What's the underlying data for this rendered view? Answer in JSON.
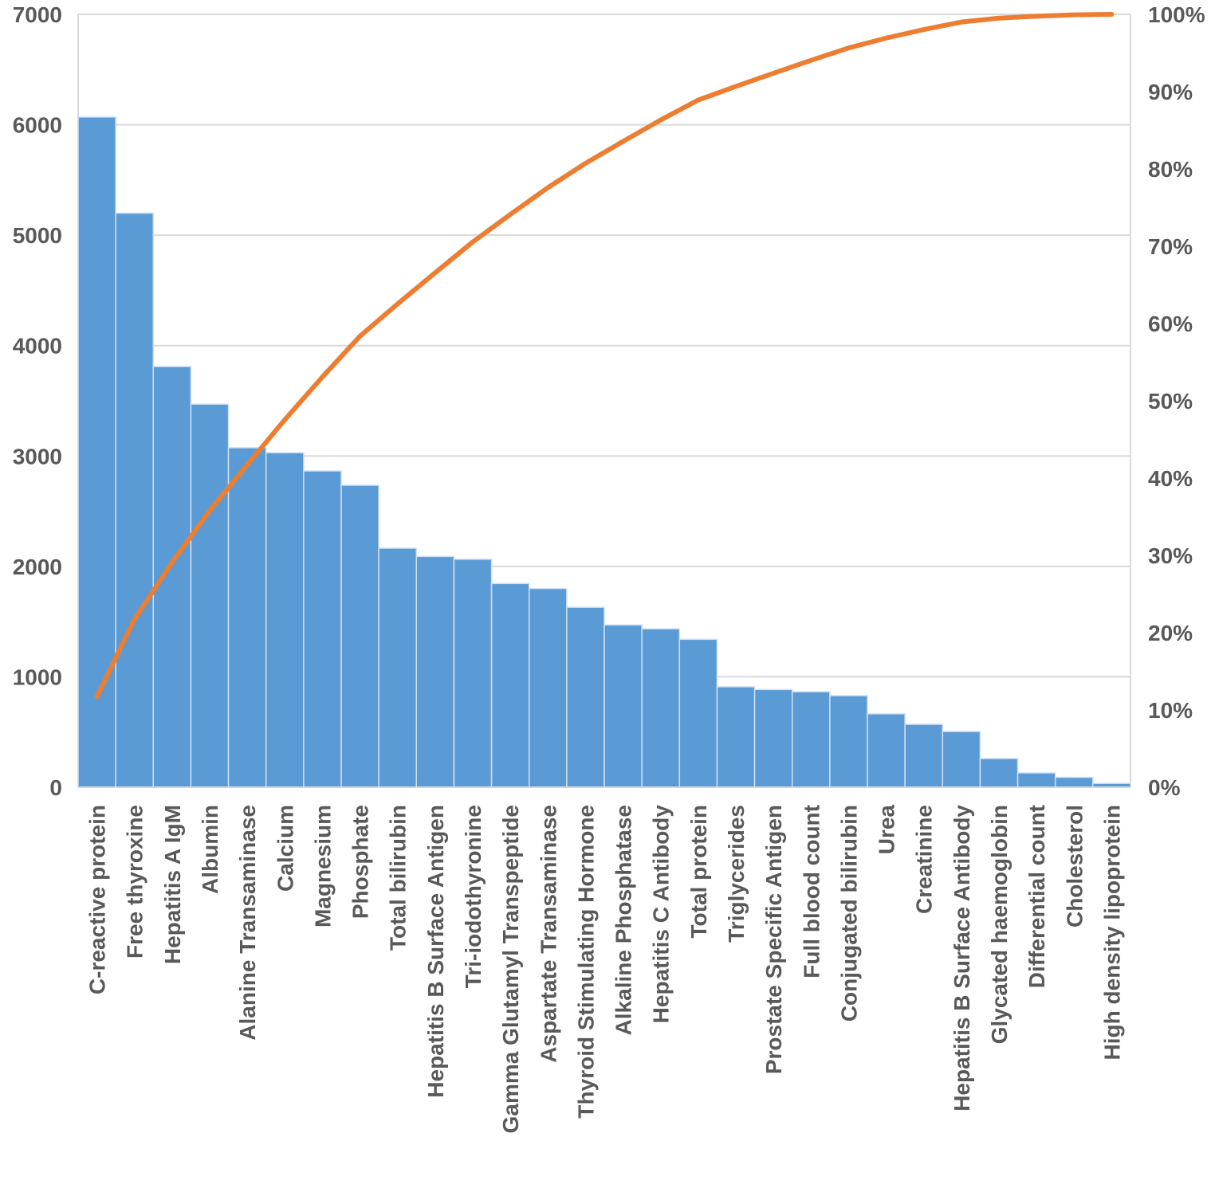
{
  "chart_data": {
    "type": "pareto",
    "title": "",
    "xlabel": "",
    "ylabel": "",
    "categories": [
      "C-reactive protein",
      "Free thyroxine",
      "Hepatitis A IgM",
      "Albumin",
      "Alanine Transaminase",
      "Calcium",
      "Magnesium",
      "Phosphate",
      "Total bilirubin",
      "Hepatitis B Surface Antigen",
      "Tri-iodothyronine",
      "Gamma Glutamyl Transpeptide",
      "Aspartate Transaminase",
      "Thyroid Stimulating Hormone",
      "Alkaline Phosphatase",
      "Hepatitis C Antibody",
      "Total protein",
      "Triglycerides",
      "Prostate Specific Antigen",
      "Full blood count",
      "Conjugated bilirubin",
      "Urea",
      "Creatinine",
      "Hepatitis B Surface Antibody",
      "Glycated haemoglobin",
      "Differential count",
      "Cholesterol",
      "High density lipoprotein"
    ],
    "series": [
      {
        "type": "bar",
        "values": [
          6070,
          5200,
          3810,
          3470,
          3075,
          3030,
          2865,
          2735,
          2165,
          2090,
          2065,
          1845,
          1800,
          1630,
          1470,
          1435,
          1340,
          910,
          885,
          865,
          830,
          665,
          570,
          505,
          260,
          130,
          90,
          35
        ],
        "color": "#5B9BD5"
      },
      {
        "type": "line",
        "axis": "right",
        "values": "cumulative percent of bar values",
        "color": "#ED7D31"
      }
    ],
    "ylim": [
      0,
      7000
    ],
    "yticks": [
      "0",
      "1000",
      "2000",
      "3000",
      "4000",
      "5000",
      "6000",
      "7000"
    ],
    "y2lim": [
      0,
      100
    ],
    "y2ticks": [
      "0%",
      "10%",
      "20%",
      "30%",
      "40%",
      "50%",
      "60%",
      "70%",
      "80%",
      "90%",
      "100%"
    ],
    "grid": true,
    "legend": "none"
  }
}
